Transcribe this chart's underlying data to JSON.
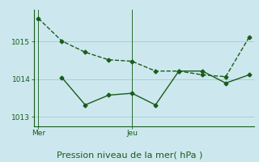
{
  "background_color": "#cce8ee",
  "grid_color": "#aaccd4",
  "line_color": "#1a5c1a",
  "xlabel": "Pression niveau de la mer( hPa )",
  "x_tick_positions": [
    0,
    4
  ],
  "x_tick_labels": [
    "Mer",
    "Jeu"
  ],
  "ylim": [
    1012.75,
    1015.85
  ],
  "yticks": [
    1013,
    1014,
    1015
  ],
  "xlim": [
    -0.2,
    9.2
  ],
  "line1_x": [
    0,
    1,
    2,
    3,
    4,
    5,
    6,
    7,
    8,
    9
  ],
  "line1_y": [
    1015.62,
    1015.02,
    1014.72,
    1014.52,
    1014.48,
    1014.22,
    1014.22,
    1014.12,
    1014.07,
    1015.12
  ],
  "line2_x": [
    1,
    2,
    3,
    4,
    5,
    6,
    7,
    8,
    9
  ],
  "line2_y": [
    1014.05,
    1013.32,
    1013.58,
    1013.63,
    1013.32,
    1014.22,
    1014.22,
    1013.9,
    1014.12
  ],
  "marker": "D",
  "markersize": 2.5,
  "linewidth": 1.0,
  "xlabel_fontsize": 8,
  "tick_fontsize": 6.5
}
